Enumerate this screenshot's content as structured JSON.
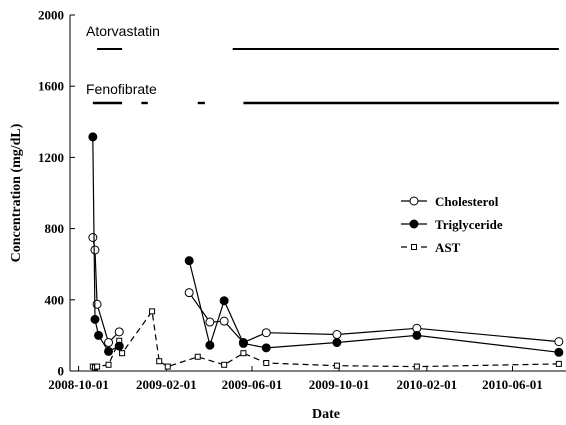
{
  "chart_data": {
    "type": "line",
    "xlabel": "Date",
    "ylabel": "Concentration (mg/dL)",
    "x_axis": {
      "scale": "date",
      "range": [
        "2008-09-19",
        "2010-08-15"
      ],
      "ticks": [
        "2008-10-01",
        "2009-02-01",
        "2009-06-01",
        "2009-10-01",
        "2010-02-01",
        "2010-06-01"
      ]
    },
    "y_axis": {
      "range": [
        0,
        2000
      ],
      "ticks": [
        0,
        400,
        800,
        1200,
        1600,
        2000
      ]
    },
    "legend": {
      "position": "right",
      "entries": [
        "Cholesterol",
        "Triglyceride",
        "AST"
      ]
    },
    "series": [
      {
        "name": "Cholesterol",
        "marker": "open-circle",
        "line": "solid",
        "segments": [
          [
            [
              "2008-10-21",
              750
            ],
            [
              "2008-10-24",
              680
            ],
            [
              "2008-10-27",
              375
            ],
            [
              "2008-11-12",
              160
            ],
            [
              "2008-11-27",
              220
            ]
          ],
          [
            [
              "2009-03-05",
              440
            ],
            [
              "2009-04-03",
              275
            ],
            [
              "2009-04-23",
              280
            ],
            [
              "2009-05-20",
              160
            ],
            [
              "2009-06-21",
              215
            ],
            [
              "2009-09-28",
              205
            ],
            [
              "2010-01-18",
              240
            ],
            [
              "2010-08-05",
              165
            ]
          ]
        ]
      },
      {
        "name": "Triglyceride",
        "marker": "filled-circle",
        "line": "solid",
        "segments": [
          [
            [
              "2008-10-21",
              1315
            ],
            [
              "2008-10-24",
              290
            ],
            [
              "2008-10-29",
              200
            ],
            [
              "2008-11-12",
              110
            ],
            [
              "2008-11-27",
              140
            ]
          ],
          [
            [
              "2009-03-05",
              620
            ],
            [
              "2009-04-03",
              145
            ],
            [
              "2009-04-23",
              395
            ],
            [
              "2009-05-20",
              155
            ],
            [
              "2009-06-21",
              130
            ],
            [
              "2009-09-28",
              160
            ],
            [
              "2010-01-18",
              200
            ],
            [
              "2010-08-05",
              105
            ]
          ]
        ]
      },
      {
        "name": "AST",
        "marker": "open-square",
        "line": "dashed",
        "segments": [
          [
            [
              "2008-10-21",
              25
            ],
            [
              "2008-10-24",
              20
            ],
            [
              "2008-10-27",
              25
            ],
            [
              "2008-11-12",
              35
            ],
            [
              "2008-11-27",
              170
            ],
            [
              "2008-12-01",
              100
            ],
            [
              "2009-01-12",
              335
            ],
            [
              "2009-01-22",
              55
            ],
            [
              "2009-02-03",
              25
            ],
            [
              "2009-03-17",
              80
            ],
            [
              "2009-04-23",
              35
            ],
            [
              "2009-05-20",
              100
            ],
            [
              "2009-06-21",
              45
            ],
            [
              "2009-09-28",
              30
            ],
            [
              "2010-01-18",
              25
            ],
            [
              "2010-08-05",
              40
            ]
          ]
        ]
      }
    ],
    "treatments": [
      {
        "label": "Atorvastatin",
        "periods": [
          [
            "2008-10-27",
            "2008-12-01"
          ],
          [
            "2009-05-05",
            "2010-08-05"
          ]
        ]
      },
      {
        "label": "Fenofibrate",
        "periods": [
          [
            "2008-10-21",
            "2008-12-01"
          ],
          [
            "2008-12-28",
            "2009-01-06"
          ],
          [
            "2009-03-17",
            "2009-03-27"
          ],
          [
            "2009-05-20",
            "2010-08-05"
          ]
        ]
      }
    ]
  }
}
